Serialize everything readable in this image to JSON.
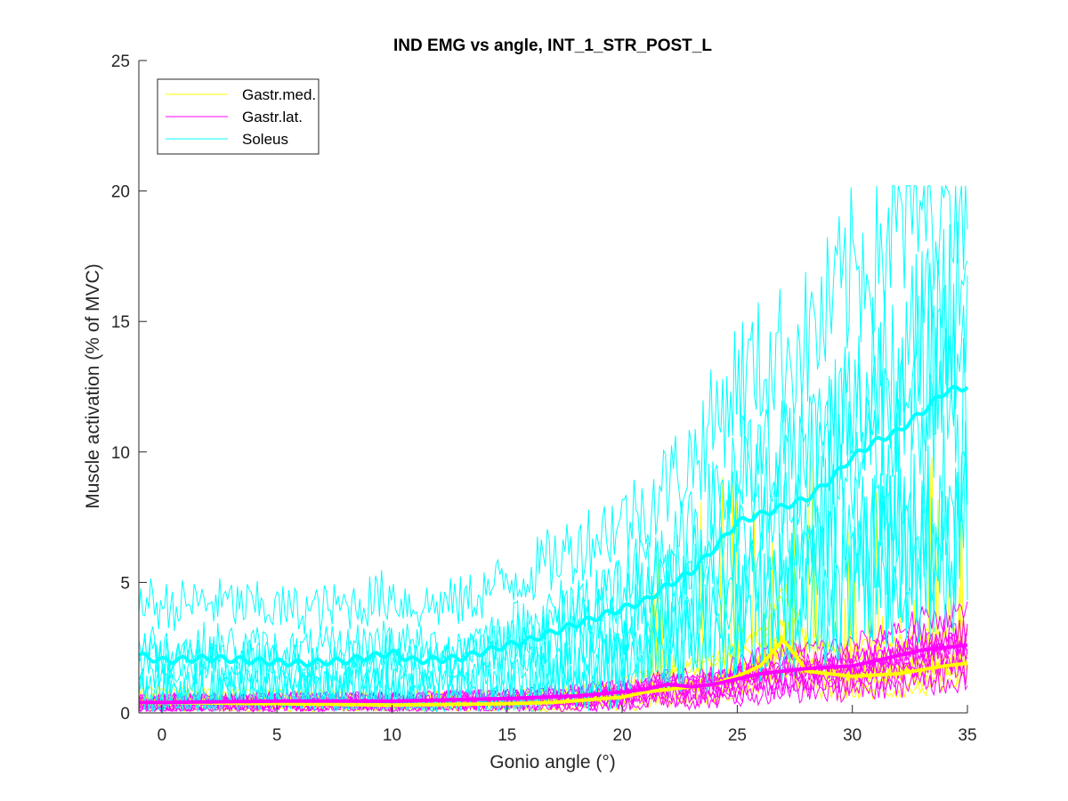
{
  "chart_data": {
    "type": "line",
    "title": "IND EMG vs angle, INT_1_STR_POST_L",
    "xlabel": "Gonio angle (°)",
    "ylabel": "Muscle activation (% of MVC)",
    "xlim": [
      -1,
      35
    ],
    "ylim": [
      0,
      25
    ],
    "xticks": [
      "0",
      "5",
      "10",
      "15",
      "20",
      "25",
      "30",
      "35"
    ],
    "yticks": [
      "0",
      "5",
      "10",
      "15",
      "20",
      "25"
    ],
    "grid": false,
    "legend_position": "top-left",
    "colors": {
      "gastr_med": "#FFFF00",
      "gastr_lat": "#FF00FF",
      "soleus": "#00FFFF"
    },
    "series": [
      {
        "name": "Gastr.med.",
        "color": "#FFFF00",
        "kind": "mean",
        "x": [
          -1,
          0,
          5,
          10,
          15,
          17,
          20,
          21,
          22,
          24,
          25,
          26,
          26.5,
          27,
          27.7,
          28,
          30,
          32,
          34,
          35
        ],
        "y": [
          0.4,
          0.4,
          0.35,
          0.3,
          0.35,
          0.4,
          0.6,
          0.8,
          0.9,
          1.1,
          1.4,
          1.8,
          2.3,
          2.8,
          2.0,
          1.6,
          1.4,
          1.5,
          1.8,
          1.9
        ]
      },
      {
        "name": "Gastr.lat.",
        "color": "#FF00FF",
        "kind": "mean",
        "x": [
          -1,
          0,
          5,
          10,
          15,
          18,
          20,
          21,
          22,
          23,
          24,
          25,
          26,
          28,
          30,
          31,
          32,
          33,
          34,
          35
        ],
        "y": [
          0.4,
          0.4,
          0.45,
          0.45,
          0.55,
          0.65,
          0.8,
          0.9,
          1.1,
          1.0,
          1.1,
          1.3,
          1.5,
          1.7,
          1.8,
          2.0,
          2.2,
          2.4,
          2.5,
          2.6
        ]
      },
      {
        "name": "Soleus",
        "color": "#00FFFF",
        "kind": "mean",
        "x": [
          -1,
          0,
          2,
          4,
          6,
          8,
          10,
          11,
          13,
          15,
          16,
          18,
          20,
          21,
          22,
          23,
          24,
          25,
          26,
          27,
          28,
          29,
          30,
          31,
          32,
          33,
          34,
          35
        ],
        "y": [
          2.2,
          2.0,
          2.1,
          2.0,
          1.9,
          2.0,
          2.3,
          2.0,
          2.1,
          2.6,
          2.8,
          3.4,
          4.0,
          4.3,
          4.9,
          5.4,
          6.3,
          7.3,
          7.6,
          7.9,
          8.2,
          8.9,
          9.8,
          10.4,
          10.8,
          11.5,
          12.3,
          12.5
        ]
      }
    ]
  }
}
